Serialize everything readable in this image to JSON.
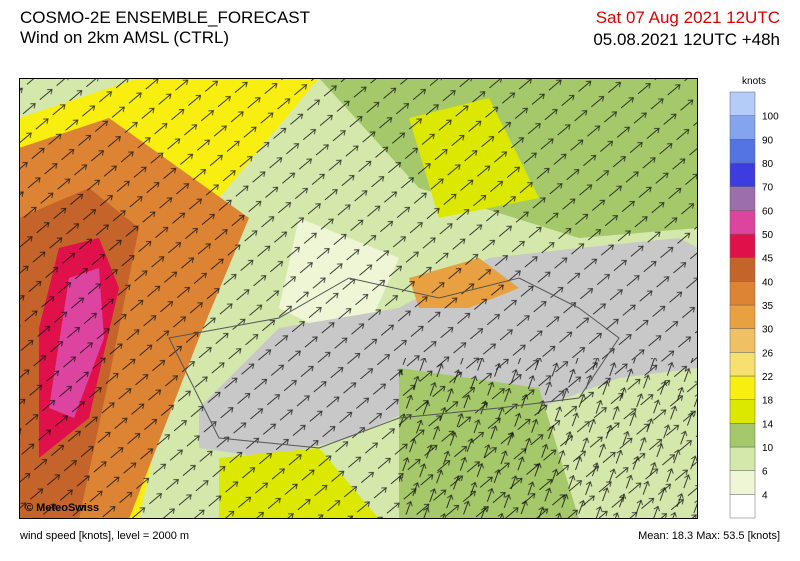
{
  "header": {
    "title": "COSMO-2E ENSEMBLE_FORECAST",
    "subtitle": "Wind on 2km AMSL (CTRL)",
    "valid_time": "Sat 07 Aug 2021 12UTC",
    "run_time": "05.08.2021 12UTC +48h"
  },
  "map": {
    "copyright": "© MeteoSwiss"
  },
  "legend": {
    "unit": "knots",
    "labels": [
      "4",
      "6",
      "10",
      "14",
      "18",
      "22",
      "26",
      "30",
      "35",
      "40",
      "45",
      "50",
      "60",
      "70",
      "80",
      "90",
      "100"
    ],
    "colors": [
      "#ffffff",
      "#eef6d6",
      "#d4e8ac",
      "#a4c86a",
      "#dce800",
      "#f8ee10",
      "#f6e070",
      "#f0c064",
      "#e8a040",
      "#dc8434",
      "#c4642a",
      "#e0104a",
      "#dc44a0",
      "#9c6eac",
      "#3c3ce0",
      "#5474e4",
      "#84a4f0",
      "#b4ccf8"
    ]
  },
  "footer": {
    "left": "wind speed [knots], level = 2000 m",
    "right": "Mean:   18.3 Max:   53.5 [knots]"
  }
}
